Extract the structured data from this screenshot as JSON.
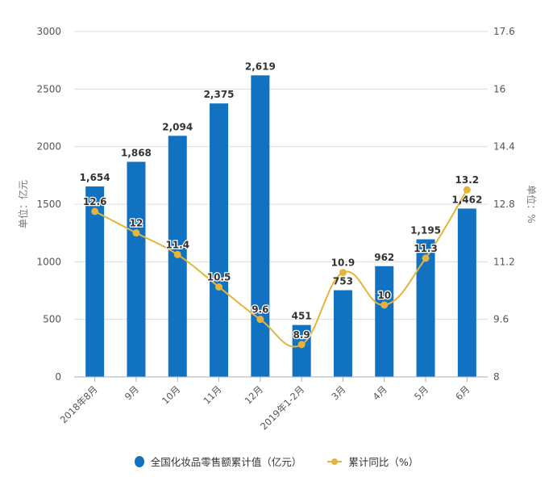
{
  "chart_data": {
    "type": "bar+line",
    "title": "",
    "categories": [
      "2018年8月",
      "9月",
      "10月",
      "11月",
      "12月",
      "2019年1-2月",
      "3月",
      "4月",
      "5月",
      "6月"
    ],
    "series": [
      {
        "name": "全国化妆品零售额累计值（亿元）",
        "type": "bar",
        "axis": "left",
        "color": "#1272C2",
        "values": [
          1654,
          1868,
          2094,
          2375,
          2619,
          451,
          753,
          962,
          1195,
          1462
        ],
        "labels": [
          "1,654",
          "1,868",
          "2,094",
          "2,375",
          "2,619",
          "451",
          "753",
          "962",
          "1,195",
          "1,462"
        ]
      },
      {
        "name": "累计同比（%）",
        "type": "line",
        "axis": "right",
        "color": "#E5B43C",
        "values": [
          12.6,
          12,
          11.4,
          10.5,
          9.6,
          8.9,
          10.9,
          10,
          11.3,
          13.2
        ],
        "labels": [
          "12.6",
          "12",
          "11.4",
          "10.5",
          "9.6",
          "8.9",
          "10.9",
          "10",
          "11.3",
          "13.2"
        ]
      }
    ],
    "ylabel": "单位：亿元",
    "ylabel_right": "单位：%",
    "ylim": [
      0,
      3000
    ],
    "ylim_right": [
      8,
      17.6
    ],
    "yticks": [
      "0",
      "500",
      "1000",
      "1500",
      "2000",
      "2500",
      "3000"
    ],
    "yticks_right": [
      "8",
      "9.6",
      "11.2",
      "12.8",
      "14.4",
      "16",
      "17.6"
    ],
    "grid": true,
    "legend_position": "bottom"
  },
  "legend": {
    "bar_label": "全国化妆品零售额累计值（亿元）",
    "line_label": "累计同比（%）"
  }
}
